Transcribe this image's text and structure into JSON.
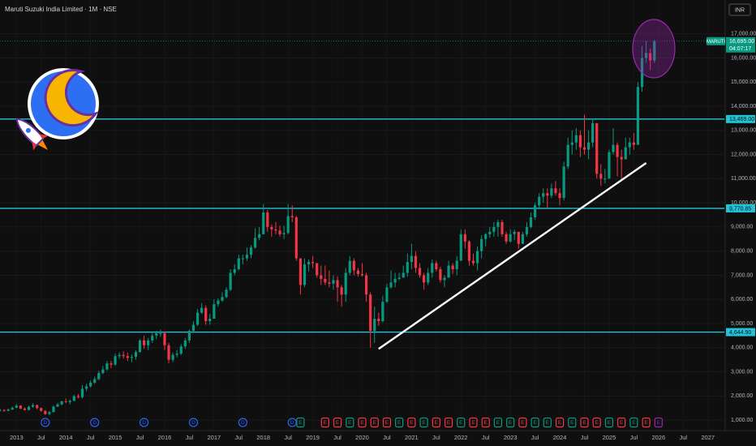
{
  "chart_data": {
    "type": "candlestick",
    "title": "Maruti Suzuki India Limited · 1M · NSE",
    "currency": "INR",
    "symbol": "MARUTI",
    "countdown": "04:07:17",
    "up_color": "#089981",
    "down_color": "#f23645",
    "grid": true,
    "x": [
      "2012-09",
      "2012-10",
      "2012-11",
      "2012-12",
      "2013-01",
      "2013-02",
      "2013-03",
      "2013-04",
      "2013-05",
      "2013-06",
      "2013-07",
      "2013-08",
      "2013-09",
      "2013-10",
      "2013-11",
      "2013-12",
      "2014-01",
      "2014-02",
      "2014-03",
      "2014-04",
      "2014-05",
      "2014-06",
      "2014-07",
      "2014-08",
      "2014-09",
      "2014-10",
      "2014-11",
      "2014-12",
      "2015-01",
      "2015-02",
      "2015-03",
      "2015-04",
      "2015-05",
      "2015-06",
      "2015-07",
      "2015-08",
      "2015-09",
      "2015-10",
      "2015-11",
      "2015-12",
      "2016-01",
      "2016-02",
      "2016-03",
      "2016-04",
      "2016-05",
      "2016-06",
      "2016-07",
      "2016-08",
      "2016-09",
      "2016-10",
      "2016-11",
      "2016-12",
      "2017-01",
      "2017-02",
      "2017-03",
      "2017-04",
      "2017-05",
      "2017-06",
      "2017-07",
      "2017-08",
      "2017-09",
      "2017-10",
      "2017-11",
      "2017-12",
      "2018-01",
      "2018-02",
      "2018-03",
      "2018-04",
      "2018-05",
      "2018-06",
      "2018-07",
      "2018-08",
      "2018-09",
      "2018-10",
      "2018-11",
      "2018-12",
      "2019-01",
      "2019-02",
      "2019-03",
      "2019-04",
      "2019-05",
      "2019-06",
      "2019-07",
      "2019-08",
      "2019-09",
      "2019-10",
      "2019-11",
      "2019-12",
      "2020-01",
      "2020-02",
      "2020-03",
      "2020-04",
      "2020-05",
      "2020-06",
      "2020-07",
      "2020-08",
      "2020-09",
      "2020-10",
      "2020-11",
      "2020-12",
      "2021-01",
      "2021-02",
      "2021-03",
      "2021-04",
      "2021-05",
      "2021-06",
      "2021-07",
      "2021-08",
      "2021-09",
      "2021-10",
      "2021-11",
      "2021-12",
      "2022-01",
      "2022-02",
      "2022-03",
      "2022-04",
      "2022-05",
      "2022-06",
      "2022-07",
      "2022-08",
      "2022-09",
      "2022-10",
      "2022-11",
      "2022-12",
      "2023-01",
      "2023-02",
      "2023-03",
      "2023-04",
      "2023-05",
      "2023-06",
      "2023-07",
      "2023-08",
      "2023-09",
      "2023-10",
      "2023-11",
      "2023-12",
      "2024-01",
      "2024-02",
      "2024-03",
      "2024-04",
      "2024-05",
      "2024-06",
      "2024-07",
      "2024-08",
      "2024-09",
      "2024-10",
      "2024-11",
      "2024-12",
      "2025-01",
      "2025-02",
      "2025-03",
      "2025-04",
      "2025-05",
      "2025-06",
      "2025-07",
      "2025-08",
      "2025-09",
      "2025-10",
      "2025-11",
      "2025-12"
    ],
    "close": [
      1420,
      1390,
      1440,
      1510,
      1600,
      1480,
      1420,
      1550,
      1620,
      1500,
      1380,
      1250,
      1330,
      1560,
      1650,
      1780,
      1750,
      1800,
      1990,
      1950,
      2300,
      2400,
      2550,
      2700,
      2950,
      3100,
      3350,
      3300,
      3650,
      3700,
      3650,
      3580,
      3620,
      3820,
      4300,
      4100,
      4300,
      4500,
      4600,
      4600,
      4100,
      3500,
      3700,
      3750,
      4050,
      4300,
      4700,
      4950,
      5450,
      5650,
      5100,
      5200,
      5800,
      5950,
      6100,
      6400,
      7100,
      7250,
      7700,
      7700,
      7850,
      8150,
      8550,
      8700,
      9600,
      9000,
      8900,
      8850,
      8700,
      8750,
      9450,
      9400,
      7700,
      6600,
      7450,
      7550,
      7500,
      7000,
      6850,
      6700,
      6650,
      6800,
      6500,
      6200,
      7100,
      7600,
      7200,
      7050,
      7000,
      6200,
      4700,
      5200,
      5100,
      5900,
      6500,
      6700,
      6850,
      6900,
      7100,
      7550,
      7800,
      7300,
      7000,
      6700,
      7100,
      7500,
      7250,
      6800,
      6900,
      7400,
      7250,
      7600,
      8700,
      8400,
      7600,
      7500,
      8000,
      8500,
      8700,
      8800,
      9000,
      9200,
      8700,
      8400,
      8700,
      8800,
      8300,
      8700,
      9000,
      9400,
      9900,
      10250,
      10400,
      10300,
      10600,
      10400,
      10200,
      11500,
      12400,
      12500,
      12800,
      12300,
      12200,
      12500,
      13300,
      11200,
      11000,
      11000,
      12100,
      12400,
      11900,
      11800,
      12300,
      12500,
      12400,
      14800,
      16000,
      16200,
      15900,
      16695
    ],
    "high": [
      1480,
      1450,
      1480,
      1560,
      1660,
      1620,
      1530,
      1600,
      1700,
      1640,
      1520,
      1420,
      1380,
      1600,
      1720,
      1800,
      1900,
      1850,
      2050,
      2080,
      2450,
      2500,
      2650,
      2800,
      3050,
      3250,
      3450,
      3450,
      3750,
      3800,
      3850,
      3800,
      3720,
      3900,
      4350,
      4500,
      4400,
      4600,
      4700,
      4750,
      4650,
      4200,
      3800,
      3900,
      4150,
      4400,
      4750,
      5100,
      5600,
      5850,
      5750,
      5400,
      6000,
      6050,
      6300,
      6500,
      7250,
      7450,
      7850,
      7850,
      8150,
      8250,
      8950,
      9000,
      9950,
      9700,
      9100,
      9200,
      9050,
      9050,
      9950,
      9900,
      9450,
      7700,
      7700,
      7650,
      7800,
      7500,
      7400,
      7400,
      7200,
      7000,
      6950,
      6600,
      7300,
      7800,
      7700,
      7300,
      7500,
      7100,
      6300,
      5700,
      5450,
      6150,
      6650,
      7200,
      7100,
      7100,
      7400,
      7900,
      8300,
      8000,
      7500,
      7100,
      7300,
      7650,
      7600,
      7350,
      7000,
      7600,
      7500,
      7800,
      8900,
      8900,
      8450,
      7900,
      8200,
      8650,
      8750,
      9000,
      9200,
      9300,
      9300,
      8800,
      8900,
      8900,
      8700,
      8800,
      9200,
      9600,
      10000,
      10400,
      10600,
      10600,
      10800,
      10900,
      10600,
      11700,
      12700,
      13000,
      13100,
      13000,
      13650,
      13000,
      13500,
      13300,
      11600,
      11400,
      12200,
      13100,
      12500,
      12200,
      12700,
      12700,
      12900,
      15000,
      16500,
      16700,
      16400,
      16750
    ],
    "low": [
      1350,
      1340,
      1370,
      1420,
      1500,
      1450,
      1400,
      1400,
      1520,
      1450,
      1350,
      1220,
      1200,
      1320,
      1540,
      1620,
      1700,
      1650,
      1780,
      1900,
      1900,
      2200,
      2350,
      2500,
      2650,
      2900,
      3050,
      3150,
      3250,
      3550,
      3550,
      3450,
      3400,
      3500,
      3800,
      3950,
      3900,
      4200,
      4350,
      4450,
      3900,
      3350,
      3400,
      3600,
      3700,
      3950,
      4200,
      4650,
      4900,
      5400,
      4950,
      4950,
      5200,
      5700,
      5900,
      6050,
      6350,
      7000,
      7200,
      7450,
      7600,
      7700,
      8100,
      8450,
      8700,
      8800,
      8600,
      8700,
      8600,
      8500,
      8700,
      9200,
      7600,
      6200,
      6500,
      7150,
      7300,
      6900,
      6600,
      6600,
      6500,
      6400,
      5900,
      5700,
      5900,
      7000,
      7000,
      6950,
      6950,
      5900,
      4000,
      4200,
      4900,
      5050,
      5850,
      6450,
      6500,
      6800,
      6900,
      6950,
      7250,
      7100,
      6900,
      6400,
      6600,
      6900,
      7150,
      6700,
      6500,
      6900,
      7050,
      7000,
      7600,
      8100,
      7400,
      7400,
      7200,
      7700,
      8200,
      8550,
      8600,
      8600,
      8600,
      8300,
      8350,
      8450,
      8100,
      8300,
      8600,
      8950,
      9300,
      9800,
      10000,
      9800,
      10200,
      10300,
      9900,
      10100,
      11400,
      12000,
      12200,
      11900,
      12000,
      11800,
      12300,
      11000,
      10700,
      10800,
      11000,
      12000,
      11100,
      11000,
      11800,
      12000,
      12200,
      12400,
      14600,
      15800,
      15500,
      15800
    ],
    "xlim": [
      "2012-09",
      "2027-05"
    ],
    "ylim": [
      600,
      18400
    ],
    "xticks": [
      {
        "value": "2013-01",
        "label": "2013"
      },
      {
        "value": "2013-07",
        "label": "Jul"
      },
      {
        "value": "2014-01",
        "label": "2014"
      },
      {
        "value": "2014-07",
        "label": "Jul"
      },
      {
        "value": "2015-01",
        "label": "2015"
      },
      {
        "value": "2015-07",
        "label": "Jul"
      },
      {
        "value": "2016-01",
        "label": "2016"
      },
      {
        "value": "2016-07",
        "label": "Jul"
      },
      {
        "value": "2017-01",
        "label": "2017"
      },
      {
        "value": "2017-07",
        "label": "Jul"
      },
      {
        "value": "2018-01",
        "label": "2018"
      },
      {
        "value": "2018-07",
        "label": "Jul"
      },
      {
        "value": "2019-01",
        "label": "2019"
      },
      {
        "value": "2019-07",
        "label": "Jul"
      },
      {
        "value": "2020-01",
        "label": "2020"
      },
      {
        "value": "2020-07",
        "label": "Jul"
      },
      {
        "value": "2021-01",
        "label": "2021"
      },
      {
        "value": "2021-07",
        "label": "Jul"
      },
      {
        "value": "2022-01",
        "label": "2022"
      },
      {
        "value": "2022-07",
        "label": "Jul"
      },
      {
        "value": "2023-01",
        "label": "2023"
      },
      {
        "value": "2023-07",
        "label": "Jul"
      },
      {
        "value": "2024-01",
        "label": "2024"
      },
      {
        "value": "2024-07",
        "label": "Jul"
      },
      {
        "value": "2025-01",
        "label": "2025"
      },
      {
        "value": "2025-07",
        "label": "Jul"
      },
      {
        "value": "2026-01",
        "label": "2026"
      },
      {
        "value": "2026-07",
        "label": "Jul"
      },
      {
        "value": "2027-01",
        "label": "2027"
      }
    ],
    "yticks": [
      {
        "value": 1000,
        "label": "1,000.00"
      },
      {
        "value": 2000,
        "label": "2,000.00"
      },
      {
        "value": 3000,
        "label": "3,000.00"
      },
      {
        "value": 4000,
        "label": "4,000.00"
      },
      {
        "value": 5000,
        "label": "5,000.00"
      },
      {
        "value": 6000,
        "label": "6,000.00"
      },
      {
        "value": 7000,
        "label": "7,000.00"
      },
      {
        "value": 8000,
        "label": "8,000.00"
      },
      {
        "value": 9000,
        "label": "9,000.00"
      },
      {
        "value": 10000,
        "label": "10,000.00"
      },
      {
        "value": 11000,
        "label": "11,000.00"
      },
      {
        "value": 12000,
        "label": "12,000.00"
      },
      {
        "value": 13000,
        "label": "13,000.00"
      },
      {
        "value": 14000,
        "label": "14,000.00"
      },
      {
        "value": 15000,
        "label": "15,000.00"
      },
      {
        "value": 16000,
        "label": "16,000.00"
      },
      {
        "value": 17000,
        "label": "17,000.00"
      }
    ],
    "price_lines": [
      {
        "value": 13469,
        "label": "13,469.00"
      },
      {
        "value": 9770.85,
        "label": "9,770.85"
      },
      {
        "value": 4644.9,
        "label": "4,644.90"
      }
    ],
    "price_line_color": "#22c3d6",
    "last_price": {
      "value": 16695,
      "label": "16,695.00"
    },
    "trendline": {
      "x": [
        "2020-05",
        "2025-10"
      ],
      "y": [
        3950,
        11650
      ]
    },
    "events": {
      "x": [
        "2013-08",
        "2014-08",
        "2015-08",
        "2016-08",
        "2017-08",
        "2018-08",
        "2018-10",
        "2019-04",
        "2019-07",
        "2019-10",
        "2020-01",
        "2020-04",
        "2020-07",
        "2020-10",
        "2021-01",
        "2021-04",
        "2021-07",
        "2021-10",
        "2022-01",
        "2022-04",
        "2022-07",
        "2022-10",
        "2023-01",
        "2023-04",
        "2023-07",
        "2023-10",
        "2024-01",
        "2024-04",
        "2024-07",
        "2024-10",
        "2025-01",
        "2025-04",
        "2025-07",
        "2025-10",
        "2026-01"
      ],
      "labels": [
        "D",
        "D",
        "D",
        "D",
        "D",
        "D",
        "E",
        "E",
        "E",
        "E",
        "E",
        "E",
        "E",
        "E",
        "E",
        "E",
        "E",
        "E",
        "E",
        "E",
        "E",
        "E",
        "E",
        "E",
        "E",
        "E",
        "E",
        "E",
        "E",
        "E",
        "E",
        "E",
        "E",
        "E",
        "E"
      ],
      "colors": [
        "#2962ff",
        "#2962ff",
        "#2962ff",
        "#2962ff",
        "#2962ff",
        "#2962ff",
        "#089981",
        "#f23645",
        "#f23645",
        "#089981",
        "#f23645",
        "#f23645",
        "#f23645",
        "#089981",
        "#f23645",
        "#089981",
        "#f23645",
        "#f23645",
        "#089981",
        "#f23645",
        "#f23645",
        "#089981",
        "#089981",
        "#f23645",
        "#089981",
        "#089981",
        "#f23645",
        "#089981",
        "#f23645",
        "#f23645",
        "#089981",
        "#f23645",
        "#089981",
        "#f23645",
        "#9c27b0"
      ]
    }
  }
}
